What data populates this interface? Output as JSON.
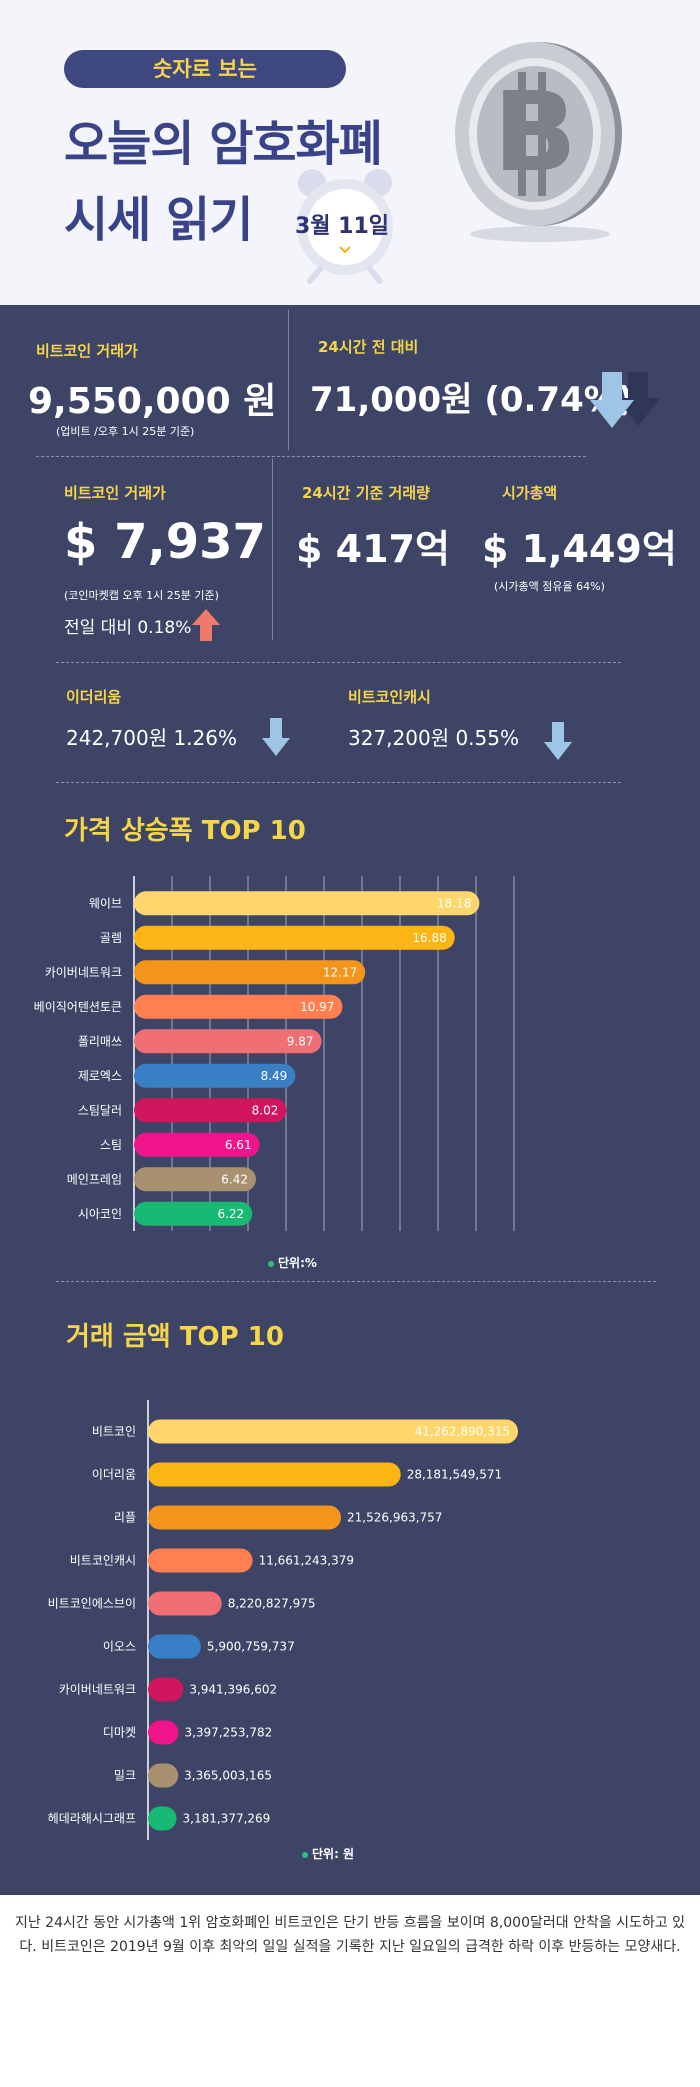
{
  "header": {
    "pill": "숫자로 보는",
    "title_line1": "오늘의 암호화폐",
    "title_line2": "시세 읽기",
    "date": "3월 11일"
  },
  "stats": {
    "btc_krw_label": "비트코인 거래가",
    "btc_krw_value": "9,550,000 원",
    "btc_krw_note": "(업비트 /오후 1시 25분 기준)",
    "change24_label": "24시간 전 대비",
    "change24_value": "71,000원 (0.74%)",
    "btc_usd_label": "비트코인 거래가",
    "btc_usd_value": "$ 7,937",
    "btc_usd_note": "(코인마켓캡 오후 1시 25분 기준)",
    "btc_usd_change": "전일 대비 0.18%",
    "volume_label": "24시간 기준 거래량",
    "volume_value": "$ 417억",
    "mcap_label": "시가총액",
    "mcap_value": "$ 1,449억",
    "mcap_note": "(시가총액 점유율 64%)",
    "eth_label": "이더리움",
    "eth_value": "242,700원  1.26%",
    "bch_label": "비트코인캐시",
    "bch_value": "327,200원  0.55%"
  },
  "colors": {
    "bg": "#3d4466",
    "accent_yellow": "#f5d54a",
    "arrow_down": "#9ec4e6",
    "arrow_up": "#f07a6a",
    "bars": [
      "#ffd66b",
      "#fbb614",
      "#f5941a",
      "#ff7f50",
      "#f06f75",
      "#3a7fc5",
      "#d0165f",
      "#f0148a",
      "#a89070",
      "#18b875"
    ]
  },
  "chart_data": [
    {
      "type": "bar",
      "orientation": "horizontal",
      "title": "가격 상승폭 TOP 10",
      "unit": "단위:%",
      "categories": [
        "웨이브",
        "골렘",
        "카이버네트워크",
        "베이직어텐션토큰",
        "폴리매쓰",
        "제로엑스",
        "스팀달러",
        "스팀",
        "메인프레임",
        "시아코인"
      ],
      "values": [
        18.18,
        16.88,
        12.17,
        10.97,
        9.87,
        8.49,
        8.02,
        6.61,
        6.42,
        6.22
      ],
      "value_labels": [
        "18.18",
        "16.88",
        "12.17",
        "10.97",
        "9.87",
        "8.49",
        "8.02",
        "6.61",
        "6.42",
        "6.22"
      ],
      "xlim": [
        0,
        20
      ],
      "grid": true
    },
    {
      "type": "bar",
      "orientation": "horizontal",
      "title": "거래 금액 TOP 10",
      "unit": "단위: 원",
      "categories": [
        "비트코인",
        "이더리움",
        "리플",
        "비트코인캐시",
        "비트코인에스브이",
        "이오스",
        "카이버네트워크",
        "디마켓",
        "밀크",
        "헤데라해시그래프"
      ],
      "values": [
        41262890315,
        28181549571,
        21526963757,
        11661243379,
        8220827975,
        5900759737,
        3941396602,
        3397253782,
        3365003165,
        3181377269
      ],
      "value_labels": [
        "41,262,890,315",
        "28,181,549,571",
        "21,526,963,757",
        "11,661,243,379",
        "8,220,827,975",
        "5,900,759,737",
        "3,941,396,602",
        "3,397,253,782",
        "3,365,003,165",
        "3,181,377,269"
      ],
      "xlim": [
        0,
        41262890315
      ],
      "grid": false
    }
  ],
  "footer": {
    "text": "지난 24시간 동안 시가총액 1위 암호화폐인 비트코인은 단기 반등 흐름을 보이며 8,000달러대 안착을 시도하고 있다. 비트코인은 2019년 9월 이후 최악의 일일 실적을 기록한 지난 일요일의 급격한 하락 이후 반등하는 모양새다."
  }
}
